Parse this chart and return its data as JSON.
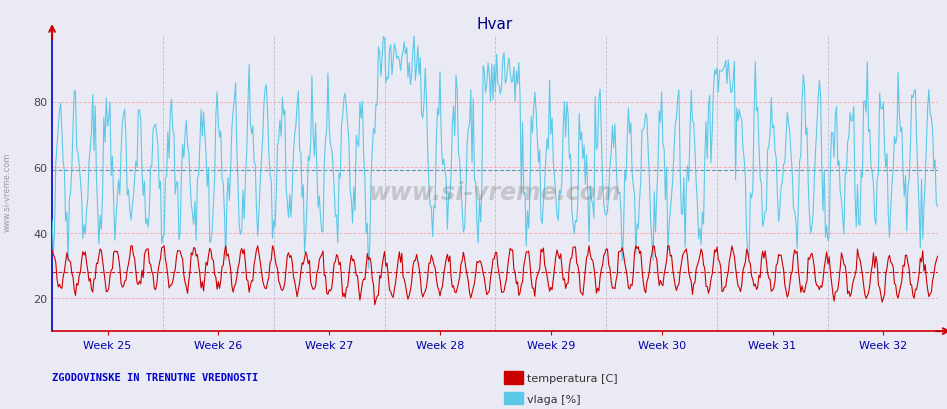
{
  "title": "Hvar",
  "title_color": "#000080",
  "title_fontsize": 11,
  "bg_color": "#eaeaf5",
  "plot_bg_color": "#eaeaf5",
  "temp_color": "#cc0000",
  "vlaga_color": "#5bc8e8",
  "vlaga_avg_line_color": "#4488aa",
  "xlabel_color": "#0000aa",
  "grid_color_h": "#ff8888",
  "grid_color_v": "#aaaacc",
  "ymin": 10,
  "ymax": 100,
  "yticks": [
    20,
    40,
    60,
    80
  ],
  "week_labels": [
    "Week 25",
    "Week 26",
    "Week 27",
    "Week 28",
    "Week 29",
    "Week 30",
    "Week 31",
    "Week 32"
  ],
  "legend_text1": "temperatura [C]",
  "legend_text2": "vlaga [%]",
  "bottom_label": "ZGODOVINSKE IN TRENUTNE VREDNOSTI",
  "bottom_label_color": "#0000cc",
  "watermark": "www.si-vreme.com",
  "n_points": 720,
  "temp_mean": 28.0,
  "vlaga_mean": 60.0,
  "temp_avg_line": 28.0,
  "vlaga_avg_line": 59.0
}
